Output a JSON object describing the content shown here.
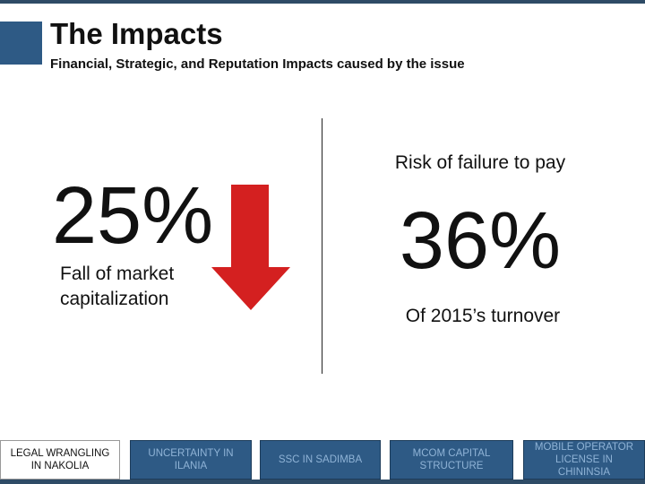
{
  "header": {
    "title": "The Impacts",
    "subtitle": "Financial, Strategic, and Reputation Impacts caused by the issue"
  },
  "left_stat": {
    "value": "25%",
    "label": "Fall of market capitalization"
  },
  "right_stat": {
    "label_top": "Risk of failure to pay",
    "value": "36%",
    "label_bottom": "Of 2015’s turnover"
  },
  "tabs": [
    {
      "label": "LEGAL WRANGLING IN NAKOLIA"
    },
    {
      "label": "UNCERTAINTY IN ILANIA"
    },
    {
      "label": "SSC IN SADIMBA"
    },
    {
      "label": "MCOM CAPITAL STRUCTURE"
    },
    {
      "label": "MOBILE OPERATOR LICENSE IN CHININSIA"
    }
  ],
  "colors": {
    "accent": "#2e5a85",
    "arrow": "#d42020"
  },
  "icons": {
    "arrow": "down-arrow-icon"
  }
}
